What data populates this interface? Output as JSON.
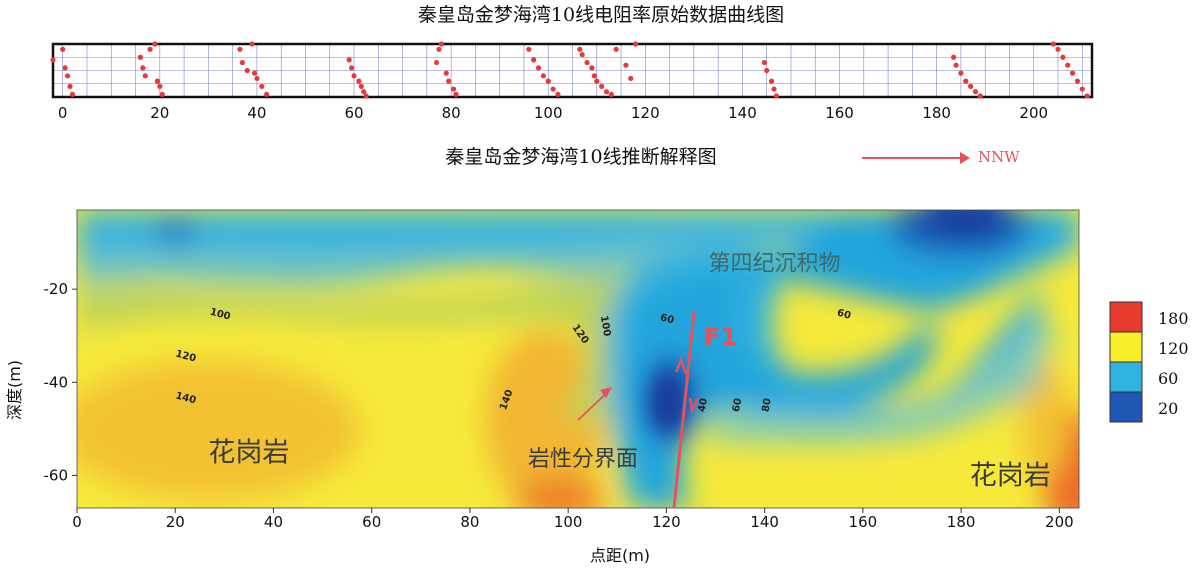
{
  "chart_data": [
    {
      "type": "scatter",
      "title": "秦皇岛金梦海湾10线电阻率原始数据曲线图",
      "xlim": [
        -2,
        212
      ],
      "xticks": [
        0,
        20,
        40,
        60,
        80,
        100,
        120,
        140,
        160,
        180,
        200
      ],
      "ylim": [
        0,
        10
      ],
      "grid": true,
      "series": [
        {
          "x": [
            -2,
            0,
            0.5,
            1,
            1.5,
            2
          ],
          "y": [
            7,
            9,
            5.5,
            4,
            2,
            0.5
          ]
        },
        {
          "x": [
            16,
            16.5,
            17,
            18,
            19,
            19.5,
            20,
            20.5
          ],
          "y": [
            7.5,
            5.5,
            4,
            9,
            10,
            3,
            2,
            0.5
          ]
        },
        {
          "x": [
            36.5,
            37,
            38,
            39,
            39.5,
            40,
            41,
            42
          ],
          "y": [
            9,
            6.5,
            5,
            10,
            4.5,
            3.5,
            2,
            0.5
          ]
        },
        {
          "x": [
            59,
            59.5,
            60,
            61,
            61.5,
            62,
            62.5
          ],
          "y": [
            7,
            5.5,
            4,
            3,
            2,
            1,
            0.2
          ]
        },
        {
          "x": [
            77,
            77.5,
            78,
            79,
            79.5,
            80.5,
            81
          ],
          "y": [
            6.5,
            9,
            10,
            4.5,
            3,
            1.5,
            0.5
          ]
        },
        {
          "x": [
            96,
            97,
            98,
            99,
            100,
            101,
            102
          ],
          "y": [
            9,
            7,
            5.5,
            4,
            3,
            1.5,
            0.5
          ]
        },
        {
          "x": [
            106.5,
            107,
            108,
            109,
            109.5,
            110,
            111,
            112,
            113,
            114,
            116,
            117,
            118
          ],
          "y": [
            9,
            8,
            6.5,
            5.5,
            4,
            3,
            2,
            1,
            0.5,
            9,
            6,
            3.5,
            10
          ]
        },
        {
          "x": [
            144.5,
            145,
            146,
            146.5,
            147
          ],
          "y": [
            6.5,
            5,
            3,
            1.5,
            0.2
          ]
        },
        {
          "x": [
            183.5,
            184,
            185,
            186,
            187,
            188,
            189
          ],
          "y": [
            7.5,
            6,
            4.5,
            3,
            2,
            1,
            0.2
          ]
        },
        {
          "x": [
            204,
            205,
            206,
            207,
            208,
            209,
            210,
            211
          ],
          "y": [
            10,
            9,
            7.5,
            6,
            4.5,
            3,
            1.5,
            0.2
          ]
        }
      ]
    },
    {
      "type": "heatmap",
      "title": "秦皇岛金梦海湾10线推断解释图",
      "xlabel": "点距(m)",
      "ylabel": "深度(m)",
      "xlim": [
        0,
        204
      ],
      "ylim": [
        -67,
        -3
      ],
      "xticks": [
        0,
        20,
        40,
        60,
        80,
        100,
        120,
        140,
        160,
        180,
        200
      ],
      "yticks": [
        -20,
        -40,
        -60
      ],
      "legend": {
        "position": "right",
        "values": [
          "180",
          "120",
          "60",
          "20"
        ],
        "colors": [
          "#e63b2e",
          "#f8ef2a",
          "#2fb2df",
          "#1e57b4"
        ]
      },
      "direction_label": "NNW",
      "annotations": [
        {
          "text": "第四纪沉积物",
          "x": 142,
          "y": -16
        },
        {
          "text": "F1",
          "x": 131,
          "y": -32
        },
        {
          "text": "花岗岩",
          "x": 35,
          "y": -57
        },
        {
          "text": "岩性分界面",
          "x": 103,
          "y": -58
        },
        {
          "text": "花岗岩",
          "x": 190,
          "y": -62
        }
      ],
      "contour_labels": [
        {
          "text": "100",
          "x": 29,
          "y": -26
        },
        {
          "text": "120",
          "x": 22,
          "y": -35
        },
        {
          "text": "140",
          "x": 22,
          "y": -44
        },
        {
          "text": "120",
          "x": 102,
          "y": -30
        },
        {
          "text": "100",
          "x": 107,
          "y": -28
        },
        {
          "text": "60",
          "x": 120,
          "y": -27
        },
        {
          "text": "140",
          "x": 88,
          "y": -44
        },
        {
          "text": "40",
          "x": 128,
          "y": -45
        },
        {
          "text": "60",
          "x": 135,
          "y": -45
        },
        {
          "text": "80",
          "x": 141,
          "y": -45
        },
        {
          "text": "60",
          "x": 156,
          "y": -26
        }
      ]
    }
  ],
  "colors": {
    "fault": "#e8505b",
    "grid": "#7b88c4",
    "points": "#e8383a"
  }
}
